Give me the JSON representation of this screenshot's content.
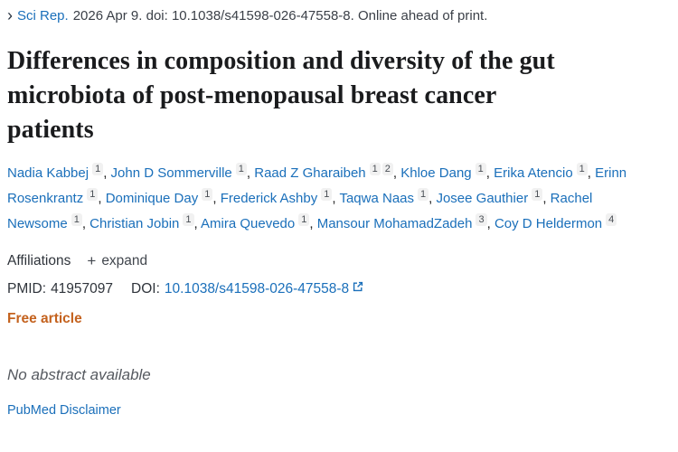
{
  "header": {
    "journal": "Sci Rep.",
    "citation": "2026 Apr 9. doi: 10.1038/s41598-026-47558-8. Online ahead of print."
  },
  "title": "Differences in composition and diversity of the gut microbiota of post-menopausal breast cancer patients",
  "title_lines": [
    "Differences in composition and diversity of the gut",
    "microbiota of post-menopausal breast cancer",
    "patients"
  ],
  "authors": {
    "list": [
      {
        "name": "Nadia Kabbej",
        "affiliations": [
          "1"
        ]
      },
      {
        "name": "John D Sommerville",
        "affiliations": [
          "1"
        ]
      },
      {
        "name": "Raad Z Gharaibeh",
        "affiliations": [
          "1",
          "2"
        ]
      },
      {
        "name": "Khloe Dang",
        "affiliations": [
          "1"
        ]
      },
      {
        "name": "Erika Atencio",
        "affiliations": [
          "1"
        ]
      },
      {
        "name": "Erinn Rosenkrantz",
        "affiliations": [
          "1"
        ]
      },
      {
        "name": "Dominique Day",
        "affiliations": [
          "1"
        ]
      },
      {
        "name": "Frederick Ashby",
        "affiliations": [
          "1"
        ]
      },
      {
        "name": "Taqwa Naas",
        "affiliations": [
          "1"
        ]
      },
      {
        "name": "Josee Gauthier",
        "affiliations": [
          "1"
        ]
      },
      {
        "name": "Rachel Newsome",
        "affiliations": [
          "1"
        ]
      },
      {
        "name": "Christian Jobin",
        "affiliations": [
          "1"
        ]
      },
      {
        "name": "Amira Quevedo",
        "affiliations": [
          "1"
        ]
      },
      {
        "name": "Mansour MohamadZadeh",
        "affiliations": [
          "3"
        ]
      },
      {
        "name": "Coy D Heldermon",
        "affiliations": [
          "4"
        ]
      }
    ]
  },
  "affiliations": {
    "label": "Affiliations",
    "plus": "+",
    "expand_label": "expand"
  },
  "identifiers": {
    "pmid_label": "PMID:",
    "pmid": "41957097",
    "doi_label": "DOI:",
    "doi": "10.1038/s41598-026-47558-8"
  },
  "free_article_label": "Free article",
  "abstract_status": "No abstract available",
  "disclaimer_label": "PubMed Disclaimer",
  "colors": {
    "link_blue": "#1a6fba",
    "free_article_orange": "#c4621e",
    "text_dark": "#212121",
    "muted_gray": "#55595f",
    "sup_badge_bg": "#f1f1f1"
  }
}
